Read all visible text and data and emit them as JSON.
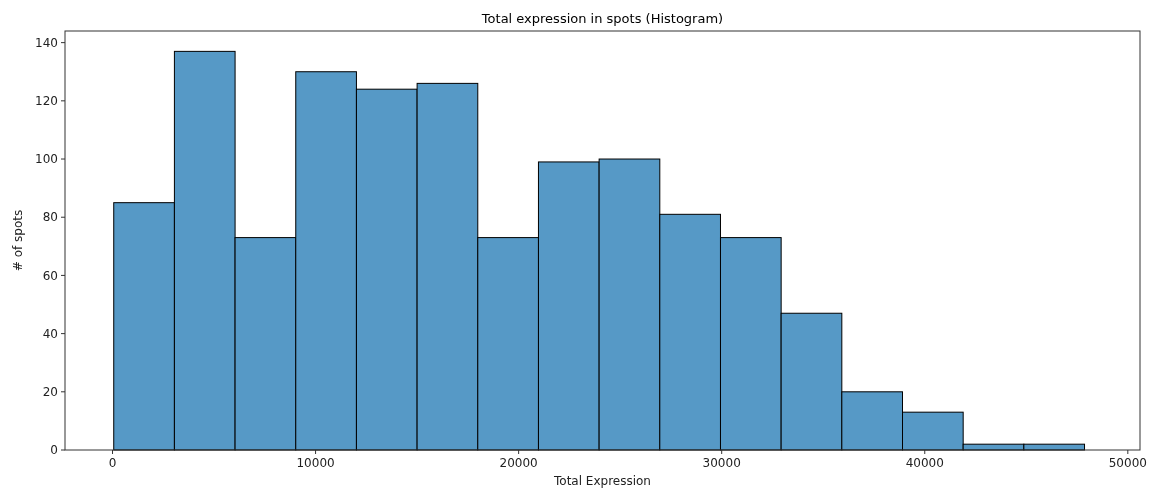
{
  "chart_data": {
    "type": "histogram",
    "title": "Total expression in spots (Histogram)",
    "xlabel": "Total Expression",
    "ylabel": "# of spots",
    "bins": [
      60,
      3048,
      6036,
      9024,
      12012,
      15000,
      17988,
      20976,
      23964,
      26952,
      29940,
      32928,
      35916,
      38904,
      41892,
      44880,
      47868
    ],
    "values": [
      85,
      137,
      73,
      130,
      124,
      126,
      73,
      99,
      100,
      81,
      73,
      47,
      20,
      13,
      2,
      2
    ],
    "color": "#5699c6",
    "xlim": [
      -2340,
      50600
    ],
    "xticks": [
      0,
      10000,
      20000,
      30000,
      40000,
      50000
    ],
    "ylim": [
      0,
      144
    ],
    "yticks": [
      0,
      20,
      40,
      60,
      80,
      100,
      120,
      140
    ]
  }
}
